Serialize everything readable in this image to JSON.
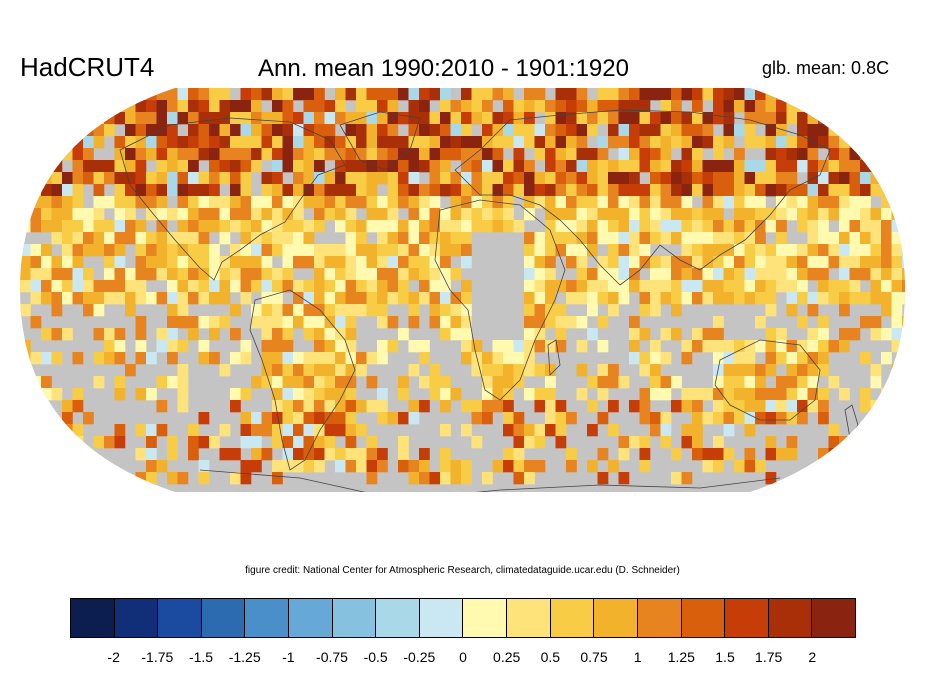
{
  "header": {
    "dataset": "HadCRUT4",
    "title": "Ann. mean 1990:2010 - 1901:1920",
    "global_mean": "glb. mean: 0.8C"
  },
  "credit": "figure credit: National Center for Atmospheric Research, climatedataguide.ucar.edu (D. Schneider)",
  "colors": {
    "missing_data": "#c4c4c4",
    "coastline": "#444444"
  },
  "colorbar": {
    "colors": [
      "#0c1e4f",
      "#112f78",
      "#1a4ba1",
      "#2d6bb1",
      "#4b8fca",
      "#66a9d6",
      "#86c1df",
      "#a9d9e8",
      "#c9e8f1",
      "#fffab0",
      "#fde37a",
      "#f8cc45",
      "#f2b22c",
      "#e88420",
      "#da5f0d",
      "#c73d08",
      "#a82f07",
      "#8a2410"
    ],
    "labels": [
      "-2",
      "-1.75",
      "-1.5",
      "-1.25",
      "-1",
      "-0.75",
      "-0.5",
      "-0.25",
      "0",
      "0.25",
      "0.5",
      "0.75",
      "1",
      "1.25",
      "1.5",
      "1.75",
      "2"
    ]
  }
}
